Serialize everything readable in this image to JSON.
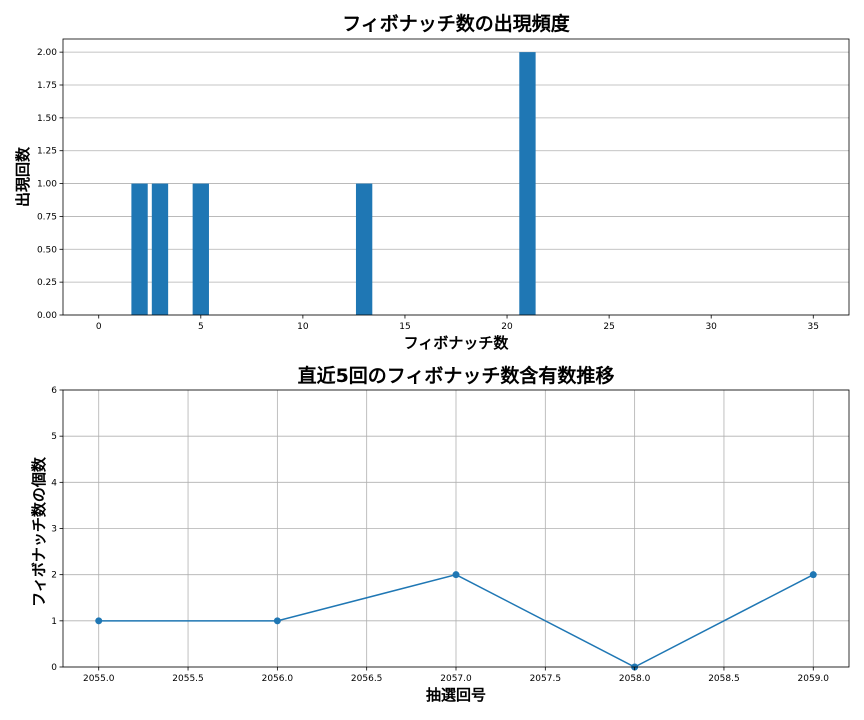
{
  "chart_data": [
    {
      "type": "bar",
      "title": "フィボナッチ数の出現頻度",
      "xlabel": "フィボナッチ数",
      "ylabel": "出現回数",
      "x": [
        2,
        3,
        5,
        13,
        21
      ],
      "values": [
        1,
        1,
        1,
        1,
        2
      ],
      "color": "#1f77b4",
      "xlim": [
        -1.75,
        36.75
      ],
      "ylim": [
        0,
        2.1
      ],
      "xticks": [
        0,
        5,
        10,
        15,
        20,
        25,
        30,
        35
      ],
      "xtick_labels": [
        "0",
        "5",
        "10",
        "15",
        "20",
        "25",
        "30",
        "35"
      ],
      "yticks": [
        0,
        0.25,
        0.5,
        0.75,
        1.0,
        1.25,
        1.5,
        1.75,
        2.0
      ],
      "ytick_labels": [
        "0.00",
        "0.25",
        "0.50",
        "0.75",
        "1.00",
        "1.25",
        "1.50",
        "1.75",
        "2.00"
      ],
      "grid": "y-axis only"
    },
    {
      "type": "line",
      "title": "直近5回のフィボナッチ数含有数推移",
      "xlabel": "抽選回号",
      "ylabel": "フィボナッチ数の個数",
      "x": [
        2055,
        2056,
        2057,
        2058,
        2059
      ],
      "values": [
        1,
        1,
        2,
        0,
        2
      ],
      "color": "#1f77b4",
      "marker": "circle",
      "xlim": [
        2054.8,
        2059.2
      ],
      "ylim": [
        0,
        6
      ],
      "xticks": [
        2055,
        2055.5,
        2056,
        2056.5,
        2057,
        2057.5,
        2058,
        2058.5,
        2059
      ],
      "xtick_labels": [
        "2055.0",
        "2055.5",
        "2056.0",
        "2056.5",
        "2057.0",
        "2057.5",
        "2058.0",
        "2058.5",
        "2059.0"
      ],
      "yticks": [
        0,
        1,
        2,
        3,
        4,
        5,
        6
      ],
      "ytick_labels": [
        "0",
        "1",
        "2",
        "3",
        "4",
        "5",
        "6"
      ],
      "grid": "both axes"
    }
  ]
}
